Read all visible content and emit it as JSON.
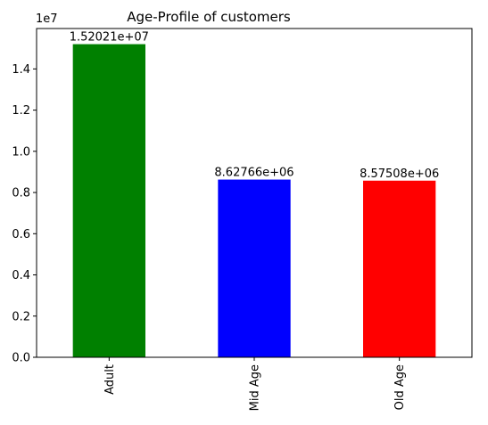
{
  "chart_data": {
    "type": "bar",
    "title": "Age-Profile of customers",
    "xlabel": "",
    "ylabel": "",
    "categories": [
      "Adult",
      "Mid Age",
      "Old Age"
    ],
    "values": [
      15202100,
      8627660,
      8575080
    ],
    "value_labels": [
      "1.52021e+07",
      "8.62766e+06",
      "8.57508e+06"
    ],
    "colors": [
      "#008000",
      "#0000ff",
      "#ff0000"
    ],
    "ylim": [
      0,
      15962205
    ],
    "yticks": [
      0,
      2000000,
      4000000,
      6000000,
      8000000,
      10000000,
      12000000,
      14000000
    ],
    "ytick_labels": [
      "0.0",
      "0.2",
      "0.4",
      "0.6",
      "0.8",
      "1.0",
      "1.2",
      "1.4"
    ],
    "offset_text": "1e7",
    "grid": false,
    "legend": "none"
  }
}
